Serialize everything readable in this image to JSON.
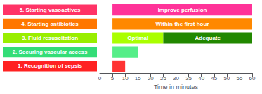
{
  "chart_data": {
    "type": "gantt",
    "orientation": "horizontal",
    "categories": [
      "5. Starting vasoactives",
      "4. Starting antibiotics",
      "3. Fluid resuscitation",
      "2. Securing vascular access",
      "1. Recognition of sepsis"
    ],
    "category_colors": [
      "#FF3366",
      "#FF7700",
      "#99EE00",
      "#33DD77",
      "#FF2222"
    ],
    "bars": [
      [
        {
          "start": 5,
          "end": 60,
          "color": "#FF3399",
          "label": "Improve perfusion"
        }
      ],
      [
        {
          "start": 5,
          "end": 60,
          "color": "#FF8800",
          "label": "Within the first hour"
        }
      ],
      [
        {
          "start": 5,
          "end": 25,
          "color": "#AAFF00",
          "label": "Optimal"
        },
        {
          "start": 25,
          "end": 60,
          "color": "#228800",
          "label": "Adequate"
        }
      ],
      [
        {
          "start": 5,
          "end": 15,
          "color": "#55EE88"
        }
      ],
      [
        {
          "start": 5,
          "end": 10,
          "color": "#FF3333"
        }
      ]
    ],
    "xlim": [
      0,
      60
    ],
    "xticks": [
      0,
      5,
      10,
      15,
      20,
      25,
      30,
      35,
      40,
      45,
      50,
      55,
      60
    ],
    "xlabel": "Time in minutes",
    "grid": false
  }
}
